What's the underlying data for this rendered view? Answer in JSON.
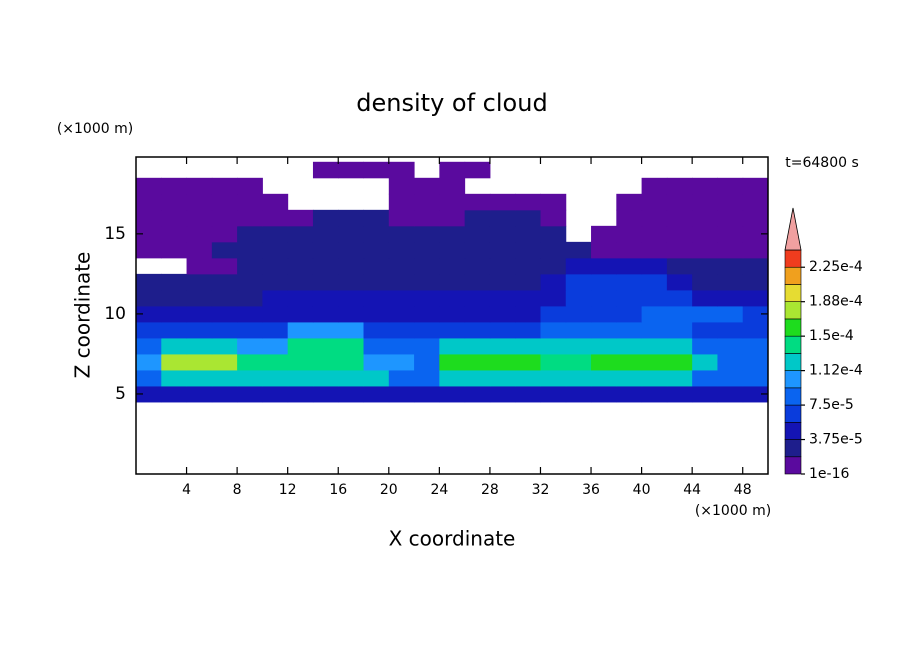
{
  "chart_data": {
    "type": "contour",
    "title": "density of cloud",
    "x_label": "X coordinate",
    "y_label": "Z coordinate",
    "x_unit": "(×1000 m)",
    "y_unit": "(×1000 m)",
    "annotation": "t=64800 s",
    "xlim": [
      0,
      50
    ],
    "ylim": [
      0,
      19.8
    ],
    "xticks": [
      4,
      8,
      12,
      16,
      20,
      24,
      28,
      32,
      36,
      40,
      44,
      48
    ],
    "yticks": [
      5,
      10,
      15
    ],
    "x": [
      1,
      3,
      5,
      7,
      9,
      11,
      13,
      15,
      17,
      19,
      21,
      23,
      25,
      27,
      29,
      31,
      33,
      35,
      37,
      39,
      41,
      43,
      45,
      47,
      49
    ],
    "y": [
      5,
      6,
      7,
      8,
      9,
      10,
      11,
      12,
      13,
      14,
      15,
      16,
      17,
      18,
      19
    ],
    "z": [
      [
        5e-05,
        5e-05,
        5e-05,
        5e-05,
        5e-05,
        5e-05,
        5e-05,
        5e-05,
        5e-05,
        5e-05,
        5e-05,
        5e-05,
        5e-05,
        5e-05,
        5e-05,
        5e-05,
        5e-05,
        5e-05,
        5e-05,
        5e-05,
        5e-05,
        5e-05,
        5e-05,
        5e-05,
        5e-05
      ],
      [
        8.5e-05,
        0.00012,
        0.00012,
        0.00012,
        0.00012,
        0.00012,
        0.00012,
        0.00012,
        0.00012,
        0.00012,
        8.5e-05,
        8.5e-05,
        0.00012,
        0.00012,
        0.00012,
        0.00012,
        0.00012,
        0.00012,
        0.00012,
        0.00012,
        0.00012,
        0.00012,
        8.5e-05,
        8.5e-05,
        8.5e-05
      ],
      [
        0.0001,
        0.00018,
        0.00018,
        0.00018,
        0.00014,
        0.00014,
        0.00014,
        0.00014,
        0.00014,
        0.0001,
        0.0001,
        8.5e-05,
        0.00016,
        0.00016,
        0.00016,
        0.00016,
        0.00014,
        0.00014,
        0.00016,
        0.00016,
        0.00016,
        0.00016,
        0.00012,
        8.5e-05,
        8.5e-05
      ],
      [
        8.5e-05,
        0.00012,
        0.00012,
        0.00012,
        0.0001,
        0.0001,
        0.00014,
        0.00014,
        0.00014,
        8.5e-05,
        8.5e-05,
        8.5e-05,
        0.00012,
        0.00012,
        0.00012,
        0.00012,
        0.00012,
        0.00012,
        0.00012,
        0.00012,
        0.00012,
        0.00012,
        8.5e-05,
        8.5e-05,
        8.5e-05
      ],
      [
        6.5e-05,
        6.5e-05,
        6.5e-05,
        6.5e-05,
        6.5e-05,
        6.5e-05,
        0.0001,
        0.0001,
        0.0001,
        6.5e-05,
        6.5e-05,
        6.5e-05,
        6.5e-05,
        6.5e-05,
        6.5e-05,
        6.5e-05,
        8.5e-05,
        8.5e-05,
        8.5e-05,
        8.5e-05,
        8.5e-05,
        8.5e-05,
        6.5e-05,
        6.5e-05,
        6.5e-05
      ],
      [
        5e-05,
        5e-05,
        5e-05,
        5e-05,
        5e-05,
        5e-05,
        5e-05,
        5e-05,
        5e-05,
        5e-05,
        5e-05,
        5e-05,
        5e-05,
        5e-05,
        5e-05,
        5e-05,
        6.5e-05,
        6.5e-05,
        6.5e-05,
        6.5e-05,
        8.5e-05,
        8.5e-05,
        8.5e-05,
        8.5e-05,
        6.5e-05
      ],
      [
        3e-05,
        3e-05,
        3e-05,
        3e-05,
        3e-05,
        5e-05,
        5e-05,
        5e-05,
        5e-05,
        5e-05,
        5e-05,
        5e-05,
        5e-05,
        5e-05,
        5e-05,
        5e-05,
        5e-05,
        6.5e-05,
        6.5e-05,
        6.5e-05,
        6.5e-05,
        6.5e-05,
        5e-05,
        5e-05,
        5e-05
      ],
      [
        3e-05,
        3e-05,
        3e-05,
        3e-05,
        3e-05,
        3e-05,
        3e-05,
        3e-05,
        3e-05,
        3e-05,
        3e-05,
        3e-05,
        3e-05,
        3e-05,
        3e-05,
        3e-05,
        5e-05,
        6.5e-05,
        6.5e-05,
        6.5e-05,
        6.5e-05,
        5e-05,
        3e-05,
        3e-05,
        3e-05
      ],
      [
        null,
        null,
        1e-05,
        1e-05,
        3e-05,
        3e-05,
        3e-05,
        3e-05,
        3e-05,
        3e-05,
        3e-05,
        3e-05,
        3e-05,
        3e-05,
        3e-05,
        3e-05,
        3e-05,
        5e-05,
        5e-05,
        5e-05,
        5e-05,
        3e-05,
        3e-05,
        3e-05,
        3e-05
      ],
      [
        1e-05,
        1e-05,
        1e-05,
        3e-05,
        3e-05,
        3e-05,
        3e-05,
        3e-05,
        3e-05,
        3e-05,
        3e-05,
        3e-05,
        3e-05,
        3e-05,
        3e-05,
        3e-05,
        3e-05,
        3e-05,
        1e-05,
        1e-05,
        1e-05,
        1e-05,
        1e-05,
        1e-05,
        1e-05
      ],
      [
        1e-05,
        1e-05,
        1e-05,
        1e-05,
        3e-05,
        3e-05,
        3e-05,
        3e-05,
        3e-05,
        3e-05,
        3e-05,
        3e-05,
        3e-05,
        3e-05,
        3e-05,
        3e-05,
        3e-05,
        null,
        1e-05,
        1e-05,
        1e-05,
        1e-05,
        1e-05,
        1e-05,
        1e-05
      ],
      [
        1e-05,
        1e-05,
        1e-05,
        1e-05,
        1e-05,
        1e-05,
        1e-05,
        3e-05,
        3e-05,
        3e-05,
        1e-05,
        1e-05,
        1e-05,
        3e-05,
        3e-05,
        3e-05,
        1e-05,
        null,
        null,
        1e-05,
        1e-05,
        1e-05,
        1e-05,
        1e-05,
        1e-05
      ],
      [
        1e-05,
        1e-05,
        1e-05,
        1e-05,
        1e-05,
        1e-05,
        null,
        null,
        null,
        null,
        1e-05,
        1e-05,
        1e-05,
        1e-05,
        1e-05,
        1e-05,
        1e-05,
        null,
        null,
        1e-05,
        1e-05,
        1e-05,
        1e-05,
        1e-05,
        1e-05
      ],
      [
        1e-05,
        1e-05,
        1e-05,
        1e-05,
        1e-05,
        null,
        null,
        null,
        null,
        null,
        1e-05,
        1e-05,
        1e-05,
        null,
        null,
        null,
        null,
        null,
        null,
        null,
        1e-05,
        1e-05,
        1e-05,
        1e-05,
        1e-05
      ],
      [
        null,
        null,
        null,
        null,
        null,
        null,
        null,
        1e-05,
        1e-05,
        1e-05,
        1e-05,
        null,
        1e-05,
        1e-05,
        null,
        null,
        null,
        null,
        null,
        null,
        null,
        null,
        null,
        null,
        null
      ]
    ],
    "levels": [
      1e-16,
      1.875e-05,
      3.75e-05,
      5.625e-05,
      7.5e-05,
      9.375e-05,
      0.0001125,
      0.00013125,
      0.00015,
      0.00016875,
      0.0001875,
      0.00020625,
      0.000225,
      0.00024375
    ],
    "colors": [
      "#5a0a9e",
      "#1e1e8c",
      "#1414b4",
      "#0a3cdc",
      "#0a64f0",
      "#1e96ff",
      "#00c8c8",
      "#00dc82",
      "#1edc1e",
      "#aae632",
      "#e6dc32",
      "#f0a01e",
      "#f03c1e"
    ],
    "over_color": "#f0a0a0",
    "colorbar_ticks": [
      {
        "value": 1e-16,
        "label": "1e-16"
      },
      {
        "value": 3.75e-05,
        "label": "3.75e-5"
      },
      {
        "value": 7.5e-05,
        "label": "7.5e-5"
      },
      {
        "value": 0.0001125,
        "label": "1.12e-4"
      },
      {
        "value": 0.00015,
        "label": "1.5e-4"
      },
      {
        "value": 0.0001875,
        "label": "1.88e-4"
      },
      {
        "value": 0.000225,
        "label": "2.25e-4"
      }
    ]
  }
}
